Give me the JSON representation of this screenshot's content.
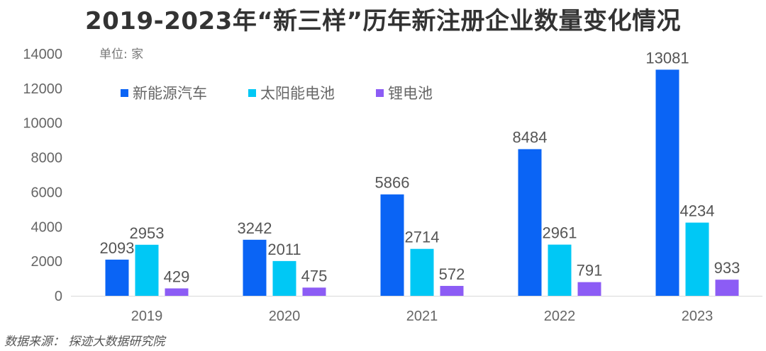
{
  "chart_data": {
    "type": "bar",
    "title": "2019-2023年“新三样”历年新注册企业数量变化情况",
    "unit_label": "单位: 家",
    "categories": [
      "2019",
      "2020",
      "2021",
      "2022",
      "2023"
    ],
    "series": [
      {
        "name": "新能源汽车",
        "color": "#0A64F5",
        "values": [
          2093,
          3242,
          5866,
          8484,
          13081
        ]
      },
      {
        "name": "太阳能电池",
        "color": "#00C8F5",
        "values": [
          2953,
          2011,
          2714,
          2961,
          4234
        ]
      },
      {
        "name": "锂电池",
        "color": "#8C5CF5",
        "values": [
          429,
          475,
          572,
          791,
          933
        ]
      }
    ],
    "ylim": [
      0,
      14000
    ],
    "yticks": [
      0,
      2000,
      4000,
      6000,
      8000,
      10000,
      12000,
      14000
    ],
    "grid": false,
    "legend_placement": "top-left"
  },
  "source": "数据来源： 探迹大数据研究院"
}
